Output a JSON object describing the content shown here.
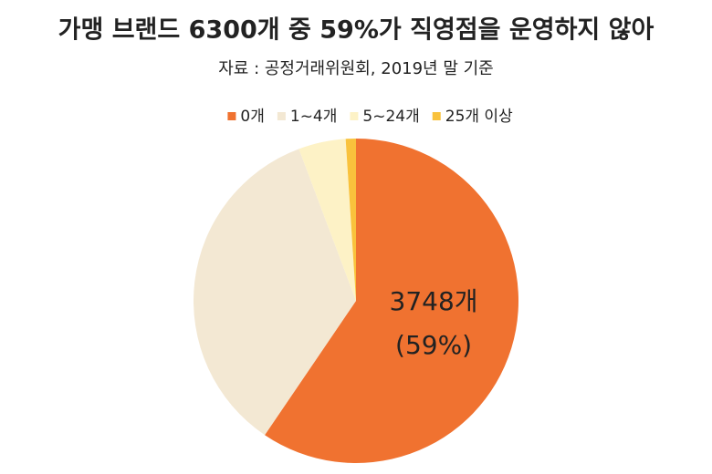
{
  "chart_data": {
    "type": "pie",
    "title": "가맹 브랜드 6300개 중 59%가 직영점을 운영하지 않아",
    "subtitle": "자료 : 공정거래위원회, 2019년 말 기준",
    "categories": [
      "0개",
      "1~4개",
      "5~24개",
      "25개 이상"
    ],
    "values": [
      3748,
      2192,
      296,
      64
    ],
    "value_labels": [
      "3748개 (59%)",
      null,
      null,
      null
    ],
    "colors": [
      "#f07230",
      "#f3e8d3",
      "#fdf2c6",
      "#f9c23c"
    ],
    "legend": "top"
  }
}
